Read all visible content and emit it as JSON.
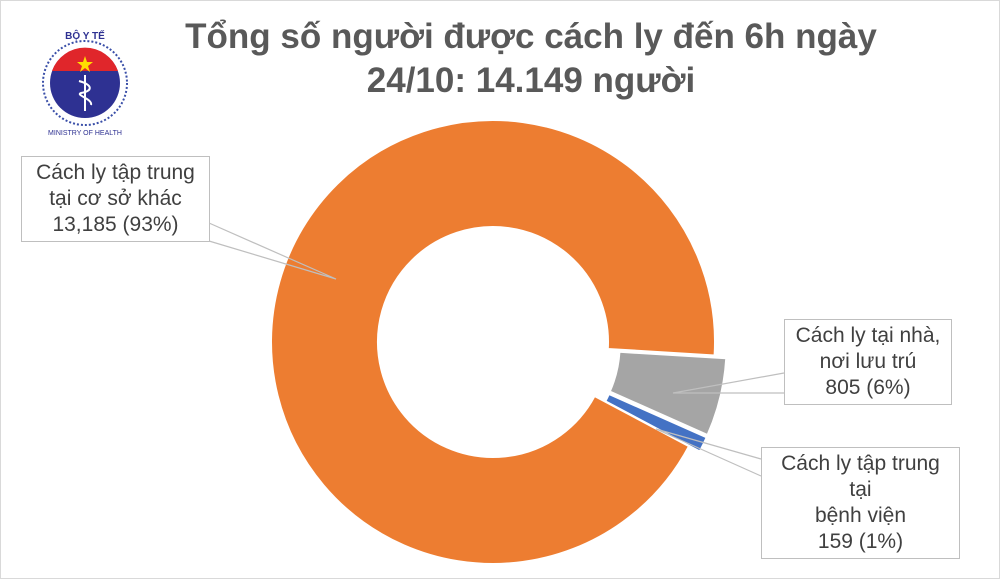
{
  "chart_data": {
    "type": "pie",
    "subtype": "donut",
    "title_line1": "Tổng số người được cách ly đến 6h ngày",
    "title_line2": "24/10: 14.149 người",
    "slices": [
      {
        "name_line1": "Cách ly tập trung",
        "name_line2": "tại cơ sở khác",
        "value": 13185,
        "value_label": "13,185 (93%)",
        "percent": 93,
        "color": "#ED7D31"
      },
      {
        "name_line1": "Cách ly tại nhà,",
        "name_line2": "nơi lưu trú",
        "value": 805,
        "value_label": "805 (6%)",
        "percent": 6,
        "color": "#A5A5A5"
      },
      {
        "name_line1": "Cách ly tập trung tại",
        "name_line2": "bệnh viện",
        "value": 159,
        "value_label": "159 (1%)",
        "percent": 1,
        "color": "#4472C4"
      }
    ],
    "legend": "none (callout data labels)"
  },
  "logo": {
    "text_top": "BỘ Y TẾ",
    "text_bottom": "MINISTRY OF HEALTH"
  }
}
